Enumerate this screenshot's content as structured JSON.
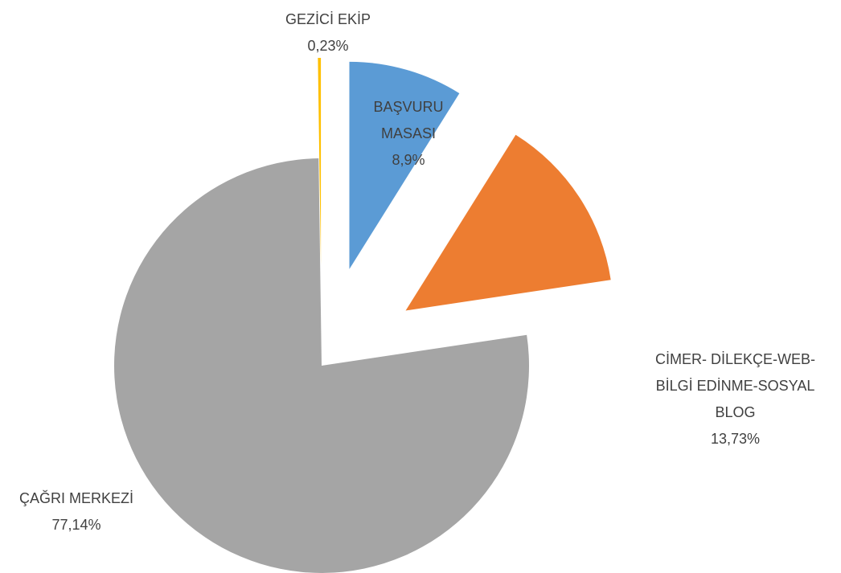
{
  "chart_data": {
    "type": "pie",
    "categories": [
      "BAŞVURU MASASI",
      "CİMER- DİLEKÇE-WEB-BİLGİ EDİNME-SOSYAL BLOG",
      "ÇAĞRI MERKEZİ",
      "GEZİCİ EKİP"
    ],
    "values": [
      8.9,
      13.73,
      77.14,
      0.23
    ],
    "value_labels": [
      "8,9%",
      "13,73%",
      "77,14%",
      "0,23%"
    ],
    "colors": [
      "#5b9bd5",
      "#ed7d31",
      "#a5a5a5",
      "#ffc000"
    ]
  }
}
